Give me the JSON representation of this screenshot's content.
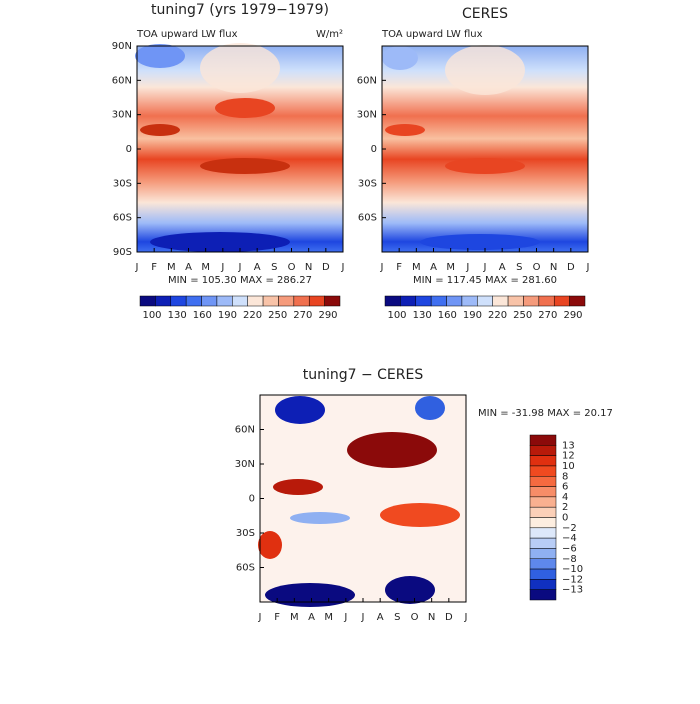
{
  "panels": [
    {
      "title": "tuning7 (yrs 1979−1979)",
      "subtitle": "TOA upward LW flux",
      "units": "W/m²",
      "min_max": "MIN = 105.30 MAX = 286.27"
    },
    {
      "title": "CERES",
      "subtitle": "TOA upward LW flux",
      "min_max": "MIN = 117.45 MAX = 281.60"
    },
    {
      "title": "tuning7 − CERES",
      "min_max": "MIN = -31.98 MAX =  20.17"
    }
  ],
  "months": [
    "J",
    "F",
    "M",
    "A",
    "M",
    "J",
    "J",
    "A",
    "S",
    "O",
    "N",
    "D",
    "J"
  ],
  "lat_labels": [
    "90N",
    "60N",
    "30N",
    "0",
    "30S",
    "60S",
    "90S"
  ],
  "colorbar_top": {
    "colors": [
      "#0a0a80",
      "#0d1fb5",
      "#1e46e0",
      "#3f6ff0",
      "#6f95f5",
      "#9dbaf8",
      "#cfe0fb",
      "#fbe6d8",
      "#f8c3a8",
      "#f59b7c",
      "#f0704f",
      "#e84522",
      "#8b0a0a"
    ],
    "labels": [
      "100",
      "130",
      "160",
      "190",
      "220",
      "250",
      "270",
      "290"
    ]
  },
  "colorbar_diff": {
    "colors": [
      "#8b0a0a",
      "#b81a0a",
      "#e03010",
      "#f04a20",
      "#f56a40",
      "#f78d68",
      "#f9b090",
      "#fbd0b8",
      "#fdeee0",
      "#dde8fa",
      "#b8cdf6",
      "#8fb0f2",
      "#5e88ec",
      "#3060e0",
      "#1030c0",
      "#0a0a80"
    ],
    "labels": [
      "13",
      "12",
      "10",
      "8",
      "6",
      "4",
      "2",
      "0",
      "−2",
      "−4",
      "−6",
      "−8",
      "−10",
      "−12",
      "−13"
    ]
  }
}
